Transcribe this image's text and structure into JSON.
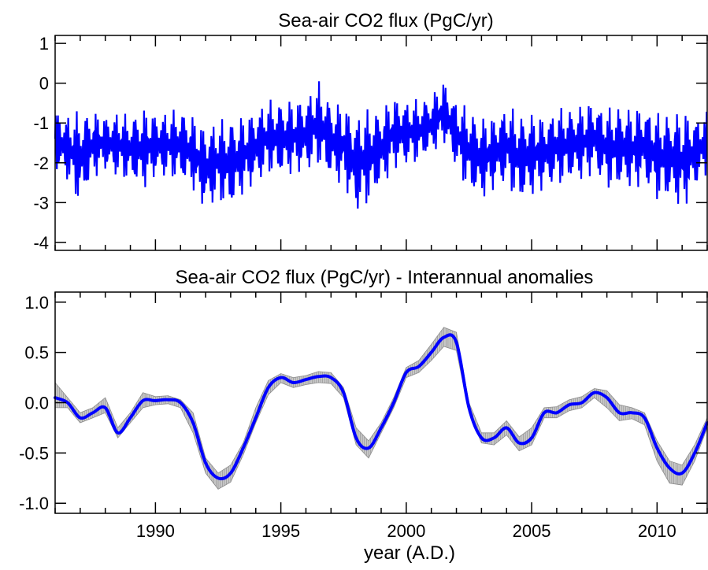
{
  "colors": {
    "series": "#0000ff",
    "band_dark": "#8c8c8c",
    "band_light": "#c8c8c8",
    "axes": "#000000"
  },
  "chart_data": [
    {
      "type": "line",
      "title": "Sea-air CO2 flux (PgC/yr)",
      "xlabel": "",
      "ylabel": "",
      "xlim": [
        1986.0,
        2012.0
      ],
      "ylim": [
        -4.2,
        1.2
      ],
      "yticks": [
        1,
        0,
        -1,
        -2,
        -3,
        -4
      ],
      "ytick_labels": [
        "1",
        "0",
        "-1",
        "-2",
        "-3",
        "-4"
      ],
      "xticks": [
        1990,
        1995,
        2000,
        2005,
        2010
      ],
      "grid": false,
      "series": [
        {
          "color": "#0000ff",
          "x": [
            1986.0,
            1986.5,
            1987.0,
            1987.5,
            1988.0,
            1988.5,
            1989.0,
            1989.5,
            1990.0,
            1990.5,
            1991.0,
            1991.5,
            1992.0,
            1992.5,
            1993.0,
            1993.5,
            1994.0,
            1994.5,
            1995.0,
            1995.5,
            1996.0,
            1996.5,
            1997.0,
            1997.5,
            1998.0,
            1998.5,
            1999.0,
            1999.5,
            2000.0,
            2000.5,
            2001.0,
            2001.5,
            2002.0,
            2002.5,
            2003.0,
            2003.5,
            2004.0,
            2004.5,
            2005.0,
            2005.5,
            2006.0,
            2006.5,
            2007.0,
            2007.5,
            2008.0,
            2008.5,
            2009.0,
            2009.5,
            2010.0,
            2010.5,
            2011.0,
            2011.5,
            2012.0
          ],
          "y_max": [
            -0.5,
            -0.7,
            -0.5,
            -0.6,
            -0.7,
            -0.6,
            -0.7,
            -0.5,
            -0.6,
            -0.6,
            -0.5,
            -0.7,
            -0.9,
            -0.8,
            -0.7,
            -0.7,
            -0.5,
            -0.3,
            -0.3,
            -0.3,
            -0.2,
            0.2,
            -0.3,
            -0.4,
            -0.6,
            -0.5,
            -0.5,
            -0.2,
            -0.3,
            -0.3,
            -0.2,
            0.2,
            -0.3,
            -0.5,
            -0.7,
            -0.7,
            -0.4,
            -0.6,
            -0.6,
            -0.7,
            -0.5,
            -0.5,
            -0.4,
            -0.3,
            -0.5,
            -0.4,
            -0.5,
            -0.4,
            -0.6,
            -0.6,
            -0.5,
            -0.7,
            -0.6
          ],
          "y_min": [
            -2.3,
            -2.6,
            -3.3,
            -2.5,
            -2.3,
            -2.5,
            -2.6,
            -2.8,
            -2.5,
            -2.5,
            -2.6,
            -2.8,
            -3.4,
            -3.1,
            -3.4,
            -2.9,
            -2.7,
            -2.4,
            -2.5,
            -2.4,
            -2.4,
            -2.2,
            -2.6,
            -2.7,
            -3.5,
            -3.2,
            -2.8,
            -2.3,
            -2.2,
            -2.1,
            -1.9,
            -1.6,
            -2.3,
            -2.9,
            -3.1,
            -2.8,
            -2.7,
            -3.2,
            -3.0,
            -2.8,
            -2.7,
            -2.6,
            -2.6,
            -2.4,
            -2.8,
            -2.8,
            -2.8,
            -2.7,
            -3.1,
            -3.1,
            -3.4,
            -2.8,
            -2.4
          ]
        }
      ]
    },
    {
      "type": "line",
      "title": "Sea-air CO2 flux (PgC/yr)  -  Interannual anomalies",
      "xlabel": "year (A.D.)",
      "ylabel": "",
      "xlim": [
        1986.0,
        2012.0
      ],
      "ylim": [
        -1.1,
        1.1
      ],
      "yticks": [
        1.0,
        0.5,
        0.0,
        -0.5,
        -1.0
      ],
      "ytick_labels": [
        "1.0",
        "0.5",
        "0.0",
        "-0.5",
        "-1.0"
      ],
      "xticks": [
        1990,
        1995,
        2000,
        2005,
        2010
      ],
      "xtick_labels": [
        "1990",
        "1995",
        "2000",
        "2005",
        "2010"
      ],
      "grid": false,
      "series": [
        {
          "color": "#0000ff",
          "x": [
            1986.0,
            1986.5,
            1987.0,
            1987.5,
            1988.0,
            1988.5,
            1989.0,
            1989.5,
            1990.0,
            1990.5,
            1991.0,
            1991.5,
            1992.0,
            1992.5,
            1993.0,
            1993.5,
            1994.0,
            1994.5,
            1995.0,
            1995.5,
            1996.0,
            1996.5,
            1997.0,
            1997.5,
            1998.0,
            1998.5,
            1999.0,
            1999.5,
            2000.0,
            2000.5,
            2001.0,
            2001.5,
            2002.0,
            2002.5,
            2003.0,
            2003.5,
            2004.0,
            2004.5,
            2005.0,
            2005.5,
            2006.0,
            2006.5,
            2007.0,
            2007.5,
            2008.0,
            2008.5,
            2009.0,
            2009.5,
            2010.0,
            2010.5,
            2011.0,
            2011.5,
            2012.0
          ],
          "y": [
            0.05,
            0.0,
            -0.15,
            -0.1,
            -0.05,
            -0.3,
            -0.15,
            0.02,
            0.02,
            0.03,
            0.0,
            -0.2,
            -0.6,
            -0.75,
            -0.7,
            -0.45,
            -0.15,
            0.15,
            0.25,
            0.2,
            0.23,
            0.26,
            0.25,
            0.1,
            -0.35,
            -0.45,
            -0.25,
            0.0,
            0.3,
            0.36,
            0.5,
            0.65,
            0.6,
            -0.05,
            -0.35,
            -0.35,
            -0.25,
            -0.4,
            -0.35,
            -0.1,
            -0.1,
            -0.02,
            0.0,
            0.1,
            0.05,
            -0.1,
            -0.1,
            -0.15,
            -0.45,
            -0.65,
            -0.7,
            -0.5,
            -0.2
          ],
          "band_upper": [
            0.2,
            0.05,
            -0.1,
            -0.05,
            0.05,
            -0.25,
            -0.1,
            0.1,
            0.06,
            0.07,
            0.03,
            -0.1,
            -0.55,
            -0.7,
            -0.62,
            -0.4,
            -0.05,
            0.22,
            0.29,
            0.25,
            0.27,
            0.31,
            0.3,
            0.15,
            -0.25,
            -0.38,
            -0.2,
            0.05,
            0.35,
            0.42,
            0.58,
            0.75,
            0.7,
            0.0,
            -0.3,
            -0.3,
            -0.18,
            -0.34,
            -0.25,
            -0.05,
            -0.04,
            0.03,
            0.06,
            0.14,
            0.12,
            -0.02,
            -0.05,
            -0.1,
            -0.38,
            -0.58,
            -0.62,
            -0.42,
            -0.15
          ],
          "band_lower": [
            -0.05,
            -0.05,
            -0.2,
            -0.15,
            -0.1,
            -0.35,
            -0.2,
            -0.05,
            -0.02,
            -0.01,
            -0.05,
            -0.3,
            -0.7,
            -0.86,
            -0.79,
            -0.52,
            -0.2,
            0.08,
            0.2,
            0.15,
            0.18,
            0.2,
            0.19,
            0.05,
            -0.42,
            -0.55,
            -0.3,
            -0.05,
            0.25,
            0.3,
            0.42,
            0.56,
            0.52,
            -0.1,
            -0.4,
            -0.42,
            -0.32,
            -0.48,
            -0.42,
            -0.15,
            -0.15,
            -0.08,
            -0.05,
            0.05,
            -0.05,
            -0.18,
            -0.16,
            -0.22,
            -0.58,
            -0.8,
            -0.82,
            -0.58,
            -0.25
          ]
        }
      ]
    }
  ]
}
